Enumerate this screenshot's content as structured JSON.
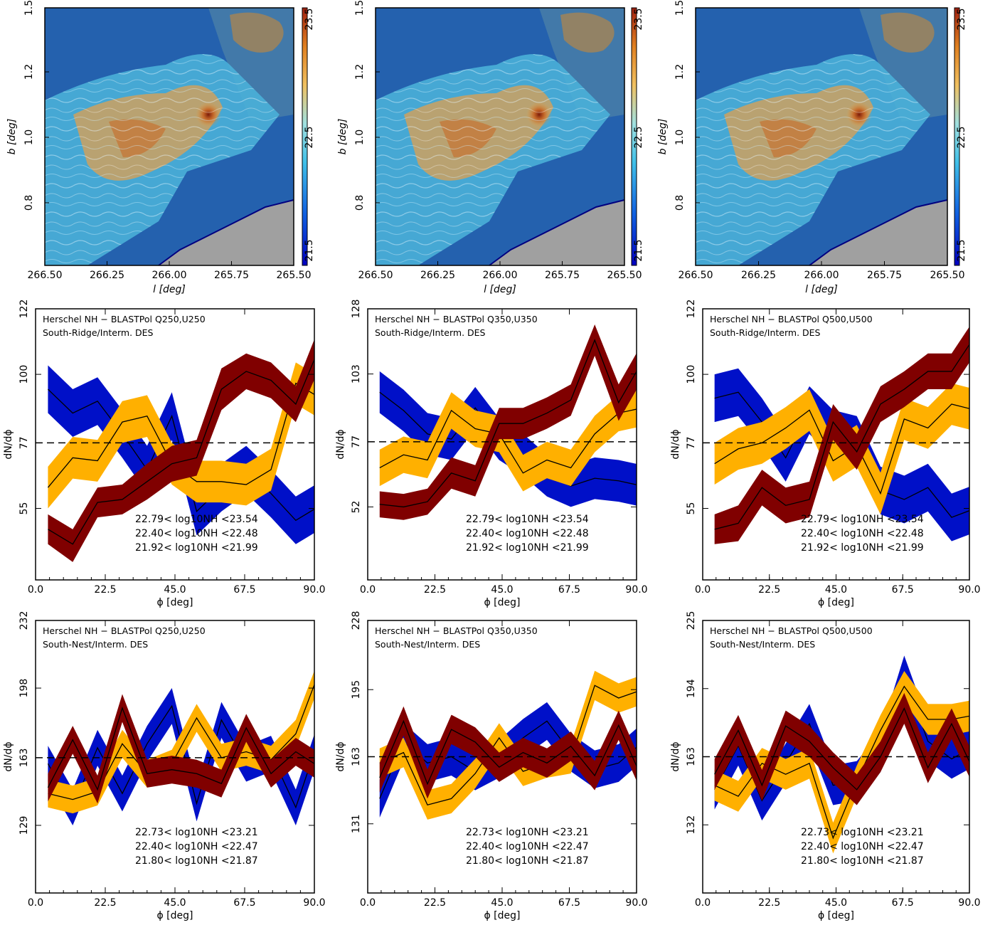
{
  "colors": {
    "high": "#800000",
    "mid": "#ffb000",
    "low": "#0010c8",
    "line": "#000000"
  },
  "maps": [
    {
      "xlabel": "l [deg]",
      "ylabel": "b [deg]",
      "xticks": [
        "266.50",
        "266.25",
        "266.00",
        "265.75",
        "265.50"
      ],
      "yticks": [
        "0.8",
        "1.0",
        "1.2",
        "1.5"
      ],
      "cbar_ticks": [
        "21.5",
        "22.5",
        "23.5"
      ]
    },
    {
      "xlabel": "l [deg]",
      "ylabel": "b [deg]",
      "xticks": [
        "266.50",
        "266.25",
        "266.00",
        "265.75",
        "265.50"
      ],
      "yticks": [
        "0.8",
        "1.0",
        "1.2",
        "1.5"
      ],
      "cbar_ticks": [
        "21.5",
        "22.5",
        "23.5"
      ]
    },
    {
      "xlabel": "l [deg]",
      "ylabel": "b [deg]",
      "xticks": [
        "266.50",
        "266.25",
        "266.00",
        "265.75",
        "265.50"
      ],
      "yticks": [
        "0.8",
        "1.0",
        "1.2",
        "1.5"
      ],
      "cbar_ticks": [
        "21.5",
        "22.5",
        "23.5"
      ]
    }
  ],
  "chart_data": [
    {
      "type": "area",
      "title_line1": "Herschel NH − BLASTPol Q250,U250",
      "title_line2": "South-Ridge/Interm. DES",
      "xlabel": "ϕ [deg]",
      "ylabel": "dN/dϕ",
      "xticks": [
        "0.0",
        "22.5",
        "45.0",
        "67.5",
        "90.0"
      ],
      "yticks": [
        "55",
        "77",
        "100",
        "122"
      ],
      "ylim": [
        31,
        122
      ],
      "ref": 77,
      "x": [
        4,
        12,
        20,
        28,
        36,
        44,
        52,
        60,
        68,
        76,
        84,
        92
      ],
      "series": [
        {
          "name": "22.79< log10NH <23.54",
          "mean": [
            48,
            43,
            57,
            58,
            64,
            70,
            72,
            95,
            101,
            98,
            90,
            110
          ],
          "lo": [
            43,
            37,
            52,
            53,
            58,
            64,
            66,
            88,
            95,
            92,
            84,
            103
          ],
          "hi": [
            53,
            48,
            62,
            63,
            70,
            76,
            78,
            102,
            107,
            104,
            96,
            117
          ]
        },
        {
          "name": "22.40< log10NH <22.48",
          "mean": [
            62,
            72,
            71,
            84,
            86,
            70,
            64,
            64,
            63,
            68,
            97,
            92
          ],
          "lo": [
            55,
            65,
            64,
            77,
            79,
            63,
            57,
            57,
            56,
            61,
            90,
            85
          ],
          "hi": [
            69,
            79,
            78,
            91,
            93,
            77,
            71,
            71,
            70,
            75,
            104,
            99
          ]
        },
        {
          "name": "21.92< log10NH <21.99",
          "mean": [
            95,
            87,
            91,
            80,
            68,
            86,
            54,
            62,
            68,
            60,
            51,
            56
          ],
          "lo": [
            87,
            79,
            83,
            72,
            60,
            78,
            46,
            54,
            60,
            52,
            43,
            48
          ],
          "hi": [
            103,
            95,
            99,
            88,
            76,
            94,
            62,
            70,
            76,
            68,
            59,
            64
          ]
        }
      ]
    },
    {
      "type": "area",
      "title_line1": "Herschel NH − BLASTPol Q350,U350",
      "title_line2": "South-Ridge/Interm. DES",
      "xlabel": "ϕ [deg]",
      "ylabel": "dN/dϕ",
      "xticks": [
        "0.0",
        "22.5",
        "45.0",
        "67.5",
        "90.0"
      ],
      "yticks": [
        "52",
        "77",
        "103",
        "128"
      ],
      "ylim": [
        24,
        128
      ],
      "ref": 77,
      "x": [
        4,
        12,
        20,
        28,
        36,
        44,
        52,
        60,
        68,
        76,
        84,
        92
      ],
      "series": [
        {
          "name": "22.79< log10NH <23.54",
          "mean": [
            53,
            52,
            54,
            65,
            62,
            84,
            84,
            88,
            93,
            116,
            92,
            108
          ],
          "lo": [
            48,
            47,
            49,
            59,
            56,
            78,
            78,
            82,
            87,
            110,
            85,
            101
          ],
          "hi": [
            58,
            57,
            59,
            71,
            68,
            90,
            90,
            94,
            99,
            122,
            99,
            115
          ]
        },
        {
          "name": "22.40< log10NH <22.48",
          "mean": [
            67,
            72,
            70,
            89,
            82,
            80,
            65,
            70,
            67,
            80,
            88,
            90
          ],
          "lo": [
            60,
            65,
            63,
            82,
            75,
            73,
            58,
            63,
            60,
            73,
            81,
            83
          ],
          "hi": [
            74,
            79,
            77,
            96,
            89,
            87,
            72,
            77,
            74,
            87,
            95,
            97
          ]
        },
        {
          "name": "21.92< log10NH <21.99",
          "mean": [
            96,
            89,
            80,
            78,
            90,
            78,
            72,
            64,
            60,
            63,
            62,
            60
          ],
          "lo": [
            88,
            81,
            72,
            70,
            82,
            70,
            64,
            56,
            52,
            55,
            54,
            52
          ],
          "hi": [
            104,
            97,
            88,
            86,
            98,
            86,
            80,
            72,
            68,
            71,
            70,
            68
          ]
        }
      ]
    },
    {
      "type": "area",
      "title_line1": "Herschel NH − BLASTPol Q500,U500",
      "title_line2": "South-Ridge/Interm. DES",
      "xlabel": "ϕ [deg]",
      "ylabel": "dN/dϕ",
      "xticks": [
        "0.0",
        "22.5",
        "45.0",
        "67.5",
        "90.0"
      ],
      "yticks": [
        "55",
        "77",
        "100",
        "122"
      ],
      "ylim": [
        31,
        122
      ],
      "ref": 77,
      "x": [
        4,
        12,
        20,
        28,
        36,
        44,
        52,
        60,
        68,
        76,
        84,
        92
      ],
      "series": [
        {
          "name": "22.79< log10NH <23.54",
          "mean": [
            48,
            50,
            62,
            56,
            58,
            84,
            74,
            90,
            95,
            101,
            101,
            113
          ],
          "lo": [
            43,
            44,
            56,
            50,
            52,
            78,
            68,
            84,
            89,
            95,
            95,
            107
          ],
          "hi": [
            53,
            56,
            68,
            62,
            64,
            90,
            80,
            96,
            101,
            107,
            107,
            119
          ]
        },
        {
          "name": "22.40< log10NH <22.48",
          "mean": [
            70,
            75,
            77,
            82,
            88,
            71,
            76,
            60,
            85,
            82,
            90,
            88
          ],
          "lo": [
            63,
            68,
            70,
            75,
            81,
            64,
            69,
            53,
            78,
            75,
            83,
            81
          ],
          "hi": [
            77,
            82,
            84,
            89,
            95,
            78,
            83,
            67,
            92,
            89,
            97,
            95
          ]
        },
        {
          "name": "21.92< log10NH <21.99",
          "mean": [
            92,
            94,
            84,
            72,
            88,
            80,
            78,
            61,
            58,
            62,
            52,
            55
          ],
          "lo": [
            84,
            86,
            76,
            64,
            80,
            72,
            70,
            53,
            50,
            54,
            44,
            47
          ],
          "hi": [
            100,
            102,
            92,
            80,
            96,
            88,
            86,
            69,
            66,
            70,
            60,
            63
          ]
        }
      ]
    },
    {
      "type": "area",
      "title_line1": "Herschel NH − BLASTPol Q250,U250",
      "title_line2": "South-Nest/Interm. DES",
      "xlabel": "ϕ [deg]",
      "ylabel": "dN/dϕ",
      "xticks": [
        "0.0",
        "22.5",
        "45.0",
        "67.5",
        "90.0"
      ],
      "yticks": [
        "129",
        "163",
        "198",
        "232"
      ],
      "ylim": [
        95,
        232
      ],
      "ref": 163,
      "x": [
        4,
        12,
        20,
        28,
        36,
        44,
        52,
        60,
        68,
        76,
        84,
        92
      ],
      "series": [
        {
          "name": "22.73< log10NH <23.21",
          "mean": [
            148,
            172,
            147,
            188,
            155,
            157,
            155,
            150,
            178,
            155,
            166,
            158
          ],
          "lo": [
            141,
            165,
            140,
            181,
            148,
            150,
            148,
            143,
            171,
            148,
            159,
            151
          ],
          "hi": [
            155,
            179,
            154,
            195,
            162,
            164,
            162,
            157,
            185,
            162,
            173,
            165
          ]
        },
        {
          "name": "22.40< log10NH <22.47",
          "mean": [
            145,
            142,
            146,
            170,
            155,
            160,
            183,
            163,
            166,
            162,
            175,
            208
          ],
          "lo": [
            138,
            135,
            139,
            163,
            148,
            153,
            176,
            156,
            159,
            155,
            168,
            201
          ],
          "hi": [
            152,
            149,
            153,
            177,
            162,
            167,
            190,
            170,
            173,
            169,
            182,
            215
          ]
        },
        {
          "name": "21.80< log10NH <21.87",
          "mean": [
            160,
            138,
            168,
            145,
            170,
            189,
            140,
            182,
            160,
            165,
            138,
            175
          ],
          "lo": [
            151,
            129,
            159,
            136,
            161,
            180,
            131,
            173,
            151,
            156,
            129,
            166
          ],
          "hi": [
            169,
            147,
            177,
            154,
            179,
            198,
            149,
            191,
            169,
            174,
            147,
            184
          ]
        }
      ]
    },
    {
      "type": "area",
      "title_line1": "Herschel NH − BLASTPol Q350,U350",
      "title_line2": "South-Nest/Interm. DES",
      "xlabel": "ϕ [deg]",
      "ylabel": "dN/dϕ",
      "xticks": [
        "0.0",
        "22.5",
        "45.0",
        "67.5",
        "90.0"
      ],
      "yticks": [
        "131",
        "163",
        "195",
        "228"
      ],
      "ylim": [
        98,
        228
      ],
      "ref": 163,
      "x": [
        4,
        12,
        20,
        28,
        36,
        44,
        52,
        60,
        68,
        76,
        84,
        92
      ],
      "series": [
        {
          "name": "22.73< log10NH <23.21",
          "mean": [
            153,
            180,
            150,
            176,
            170,
            158,
            165,
            160,
            168,
            154,
            178,
            152
          ],
          "lo": [
            146,
            173,
            143,
            169,
            163,
            151,
            158,
            153,
            161,
            147,
            171,
            145
          ],
          "hi": [
            160,
            187,
            157,
            183,
            177,
            165,
            172,
            167,
            175,
            161,
            185,
            159
          ]
        },
        {
          "name": "22.40< log10NH <22.47",
          "mean": [
            160,
            165,
            140,
            143,
            155,
            172,
            156,
            160,
            162,
            197,
            191,
            195
          ],
          "lo": [
            153,
            158,
            133,
            136,
            148,
            165,
            149,
            153,
            155,
            190,
            184,
            188
          ],
          "hi": [
            167,
            172,
            147,
            150,
            162,
            179,
            163,
            167,
            169,
            204,
            198,
            202
          ]
        },
        {
          "name": "21.80< log10NH <21.87",
          "mean": [
            143,
            170,
            160,
            163,
            156,
            162,
            172,
            180,
            165,
            157,
            160,
            170
          ],
          "lo": [
            134,
            161,
            151,
            154,
            147,
            153,
            163,
            171,
            156,
            148,
            151,
            161
          ],
          "hi": [
            152,
            179,
            169,
            172,
            165,
            171,
            181,
            189,
            174,
            166,
            169,
            179
          ]
        }
      ]
    },
    {
      "type": "area",
      "title_line1": "Herschel NH − BLASTPol Q500,U500",
      "title_line2": "South-Nest/Interm. DES",
      "xlabel": "ϕ [deg]",
      "ylabel": "dN/dϕ",
      "xticks": [
        "0.0",
        "22.5",
        "45.0",
        "67.5",
        "90.0"
      ],
      "yticks": [
        "132",
        "163",
        "194",
        "225"
      ],
      "ylim": [
        101,
        225
      ],
      "ref": 163,
      "x": [
        4,
        12,
        20,
        28,
        36,
        44,
        52,
        60,
        68,
        76,
        84,
        92
      ],
      "series": [
        {
          "name": "22.73< log10NH <23.21",
          "mean": [
            155,
            175,
            150,
            177,
            170,
            158,
            148,
            163,
            185,
            158,
            178,
            155
          ],
          "lo": [
            148,
            168,
            143,
            170,
            163,
            151,
            141,
            156,
            178,
            151,
            171,
            148
          ],
          "hi": [
            162,
            182,
            157,
            184,
            177,
            165,
            155,
            170,
            192,
            165,
            185,
            162
          ]
        },
        {
          "name": "22.40< log10NH <22.47",
          "mean": [
            150,
            145,
            160,
            155,
            160,
            126,
            152,
            175,
            195,
            180,
            180,
            182
          ],
          "lo": [
            143,
            138,
            153,
            148,
            153,
            119,
            145,
            168,
            188,
            173,
            173,
            175
          ],
          "hi": [
            157,
            152,
            167,
            162,
            167,
            133,
            159,
            182,
            202,
            187,
            187,
            189
          ]
        },
        {
          "name": "21.80< log10NH <21.87",
          "mean": [
            148,
            168,
            143,
            160,
            178,
            150,
            152,
            165,
            200,
            170,
            162,
            168
          ],
          "lo": [
            139,
            159,
            134,
            151,
            169,
            141,
            143,
            156,
            191,
            161,
            153,
            159
          ],
          "hi": [
            157,
            177,
            152,
            169,
            187,
            159,
            161,
            174,
            209,
            179,
            171,
            177
          ]
        }
      ]
    }
  ]
}
